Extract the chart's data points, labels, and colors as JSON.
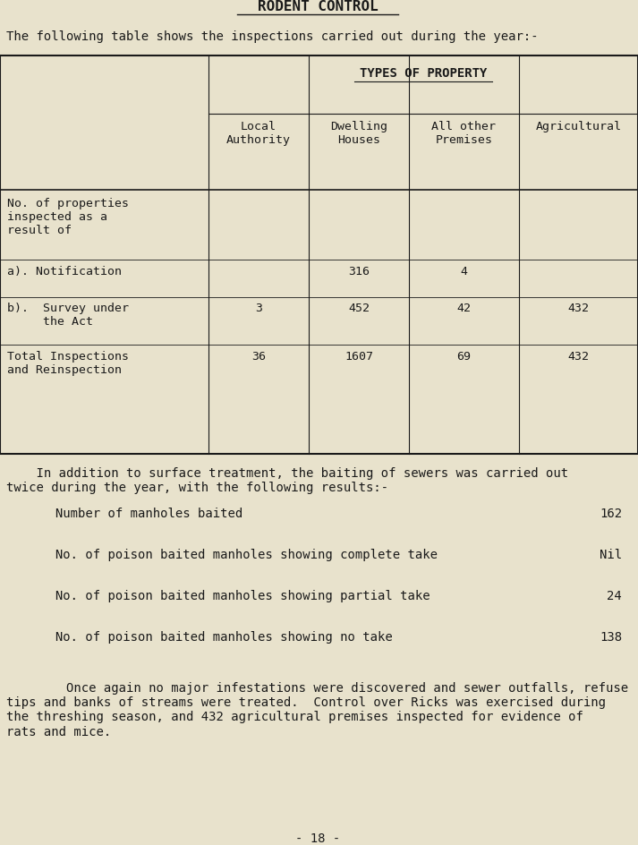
{
  "title": "RODENT CONTROL",
  "subtitle": "The following table shows the inspections carried out during the year:-",
  "bg_color": "#e8e2cc",
  "text_color": "#1a1a1a",
  "table_header_types": "TYPES OF PROPERTY",
  "col_headers": [
    "Local\nAuthority",
    "Dwelling\nHouses",
    "All other\nPremises",
    "Agricultural"
  ],
  "row_labels": [
    "No. of properties\ninspected as a\nresult of",
    "a). Notification",
    "b).  Survey under\n     the Act",
    "Total Inspections\nand Reinspection"
  ],
  "table_data": [
    [
      "",
      "",
      "",
      ""
    ],
    [
      "",
      "316",
      "4",
      ""
    ],
    [
      "3",
      "452",
      "42",
      "432"
    ],
    [
      "36",
      "1607",
      "69",
      "432"
    ]
  ],
  "addition_text": "    In addition to surface treatment, the baiting of sewers was carried out\ntwice during the year, with the following results:-",
  "results_rows": [
    [
      "     Number of manholes baited",
      "162"
    ],
    [
      "     No. of poison baited manholes showing complete take",
      "Nil"
    ],
    [
      "     No. of poison baited manholes showing partial take",
      "24"
    ],
    [
      "     No. of poison baited manholes showing no take",
      "138"
    ]
  ],
  "closing_text": "        Once again no major infestations were discovered and sewer outfalls, refuse\ntips and banks of streams were treated.  Control over Ricks was exercised during\nthe threshing season, and 432 agricultural premises inspected for evidence of\nrats and mice.",
  "page_number": "- 18 -"
}
